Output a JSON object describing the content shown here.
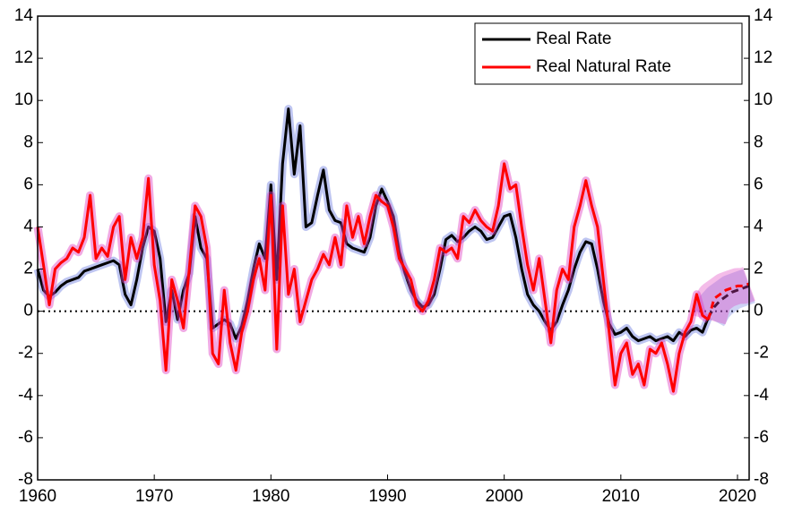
{
  "chart_data": {
    "type": "line",
    "x": [
      1960,
      1960.5,
      1961,
      1961.5,
      1962,
      1962.5,
      1963,
      1963.5,
      1964,
      1964.5,
      1965,
      1965.5,
      1966,
      1966.5,
      1967,
      1967.5,
      1968,
      1968.5,
      1969,
      1969.5,
      1970,
      1970.5,
      1971,
      1971.5,
      1972,
      1972.5,
      1973,
      1973.5,
      1974,
      1974.5,
      1975,
      1975.5,
      1976,
      1976.5,
      1977,
      1977.5,
      1978,
      1978.5,
      1979,
      1979.5,
      1980,
      1980.5,
      1981,
      1981.5,
      1982,
      1982.5,
      1983,
      1983.5,
      1984,
      1984.5,
      1985,
      1985.5,
      1986,
      1986.5,
      1987,
      1987.5,
      1988,
      1988.5,
      1989,
      1989.5,
      1990,
      1990.5,
      1991,
      1991.5,
      1992,
      1992.5,
      1993,
      1993.5,
      1994,
      1994.5,
      1995,
      1995.5,
      1996,
      1996.5,
      1997,
      1997.5,
      1998,
      1998.5,
      1999,
      1999.5,
      2000,
      2000.5,
      2001,
      2001.5,
      2002,
      2002.5,
      2003,
      2003.5,
      2004,
      2004.5,
      2005,
      2005.5,
      2006,
      2006.5,
      2007,
      2007.5,
      2008,
      2008.5,
      2009,
      2009.5,
      2010,
      2010.5,
      2011,
      2011.5,
      2012,
      2012.5,
      2013,
      2013.5,
      2014,
      2014.5,
      2015,
      2015.5,
      2016,
      2016.5,
      2017,
      2017.5,
      2018,
      2018.5,
      2019,
      2019.5,
      2020,
      2020.5,
      2021
    ],
    "series": [
      {
        "name": "Real Rate",
        "color": "#000000",
        "band_color": "#6f7fe0",
        "values": [
          2.0,
          1.0,
          0.7,
          0.9,
          1.2,
          1.4,
          1.5,
          1.6,
          1.9,
          2.0,
          2.1,
          2.2,
          2.3,
          2.4,
          2.2,
          0.8,
          0.3,
          1.5,
          3.0,
          4.0,
          3.8,
          2.5,
          -0.5,
          1.0,
          -0.4,
          1.0,
          1.8,
          4.5,
          3.0,
          2.5,
          -0.8,
          -0.6,
          -0.4,
          -0.6,
          -1.3,
          -0.7,
          0.5,
          2.0,
          3.2,
          2.5,
          6.0,
          1.5,
          7.0,
          9.6,
          6.5,
          8.8,
          4.0,
          4.2,
          5.5,
          6.7,
          4.8,
          4.3,
          4.2,
          3.2,
          3.0,
          2.9,
          2.8,
          3.5,
          5.0,
          5.8,
          5.2,
          4.5,
          2.8,
          1.8,
          1.0,
          0.5,
          0.2,
          0.3,
          0.8,
          2.0,
          3.4,
          3.6,
          3.3,
          3.5,
          3.8,
          4.0,
          3.8,
          3.4,
          3.5,
          4.0,
          4.5,
          4.6,
          3.5,
          2.0,
          0.8,
          0.3,
          0.0,
          -0.5,
          -0.9,
          -0.5,
          0.3,
          1.0,
          2.0,
          2.8,
          3.3,
          3.2,
          2.0,
          0.5,
          -0.6,
          -1.1,
          -1.0,
          -0.8,
          -1.2,
          -1.4,
          -1.3,
          -1.2,
          -1.4,
          -1.3,
          -1.2,
          -1.4,
          -1.0,
          -1.2,
          -0.9,
          -0.8,
          -1.0,
          -0.3,
          0.2,
          0.5,
          0.7,
          0.9,
          1.0,
          1.1,
          1.2
        ]
      },
      {
        "name": "Real Natural Rate",
        "color": "#ff0000",
        "band_color": "#e040c0",
        "values": [
          4.0,
          2.2,
          0.3,
          2.0,
          2.3,
          2.5,
          3.0,
          2.8,
          3.5,
          5.5,
          2.5,
          3.0,
          2.6,
          4.0,
          4.5,
          1.5,
          3.5,
          2.5,
          3.5,
          6.3,
          2.2,
          0.5,
          -2.8,
          1.5,
          0.5,
          -0.8,
          2.0,
          5.0,
          4.5,
          3.0,
          -2.0,
          -2.5,
          1.0,
          -1.5,
          -2.8,
          -1.0,
          0.0,
          1.5,
          2.5,
          1.0,
          5.5,
          -1.8,
          5.0,
          0.8,
          2.0,
          -0.5,
          0.5,
          1.5,
          2.0,
          2.7,
          2.2,
          3.5,
          2.2,
          5.0,
          3.5,
          4.5,
          3.2,
          4.5,
          5.5,
          5.2,
          5.0,
          4.0,
          2.5,
          2.0,
          1.5,
          0.3,
          0.0,
          0.5,
          1.5,
          3.0,
          2.8,
          3.0,
          2.5,
          4.5,
          4.2,
          4.8,
          4.3,
          4.0,
          3.8,
          5.0,
          7.0,
          5.8,
          6.0,
          4.0,
          2.2,
          1.0,
          2.5,
          0.5,
          -1.5,
          1.0,
          2.0,
          1.5,
          4.0,
          5.0,
          6.2,
          5.0,
          4.0,
          1.5,
          -1.0,
          -3.5,
          -2.0,
          -1.5,
          -3.0,
          -2.5,
          -3.5,
          -1.8,
          -2.0,
          -1.5,
          -2.5,
          -3.8,
          -2.0,
          -1.0,
          -0.5,
          0.8,
          -0.2,
          -0.4,
          0.6,
          0.8,
          1.0,
          1.1,
          1.2,
          1.2,
          1.3
        ]
      }
    ],
    "forecast_from": 2017.5,
    "xlim": [
      1960,
      2021
    ],
    "xticks": [
      1960,
      1970,
      1980,
      1990,
      2000,
      2010,
      2020
    ],
    "ylim": [
      -8,
      14
    ],
    "yticks": [
      -8,
      -6,
      -4,
      -2,
      0,
      2,
      4,
      6,
      8,
      10,
      12,
      14
    ],
    "y2lim": [
      -8,
      14
    ],
    "y2ticks": [
      -8,
      -6,
      -4,
      -2,
      0,
      2,
      4,
      6,
      8,
      10,
      12,
      14
    ],
    "zero_line": true,
    "legend": "upper right"
  }
}
